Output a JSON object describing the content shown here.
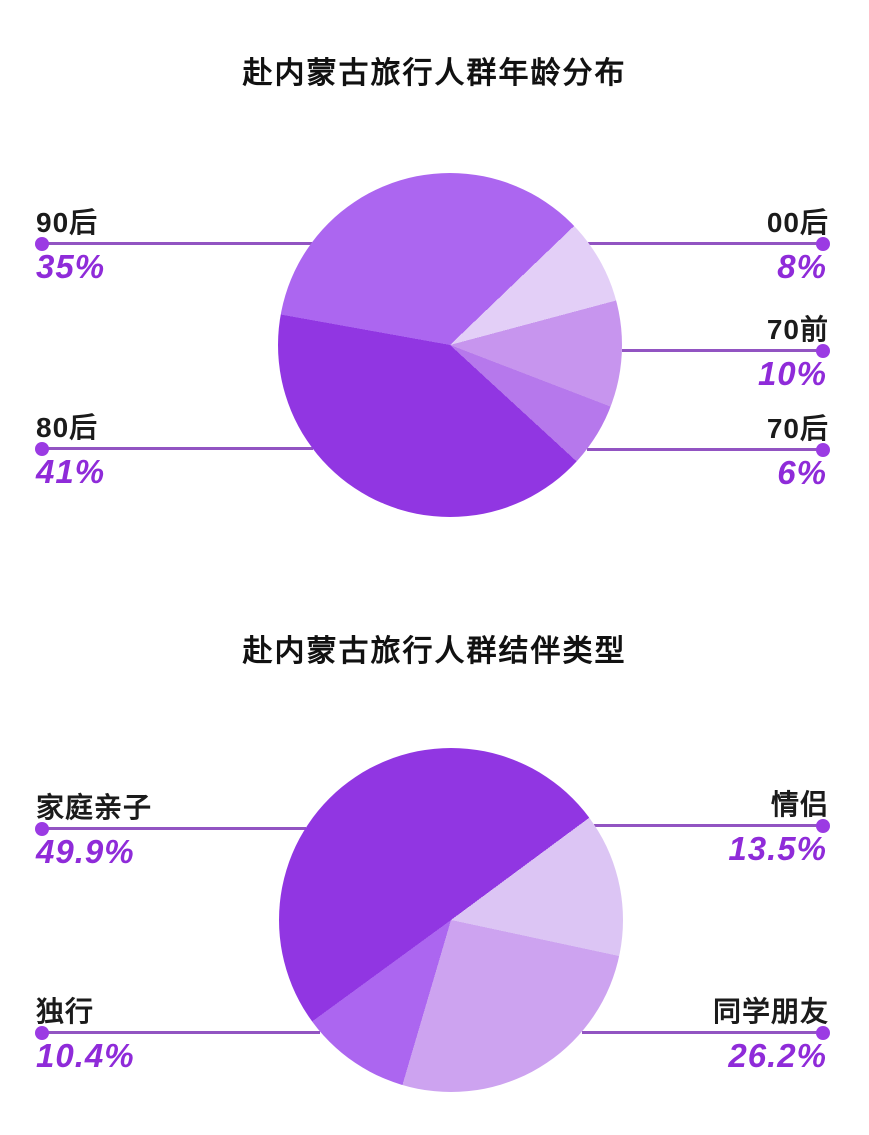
{
  "colors": {
    "background": "#ffffff",
    "title_text": "#111111",
    "label_text": "#1b1b1b",
    "percent_text": "#8F2BD9",
    "leader_line": "#9254C2",
    "leader_dot": "#9B3BE3"
  },
  "chart_data": [
    {
      "type": "pie",
      "title": "赴内蒙古旅行人群年龄分布",
      "unit": "%",
      "legend_position": "callout-labels-left-right",
      "grid": false,
      "start_angle_deg": 46.2,
      "clockwise_order": [
        "00后",
        "70前",
        "70后",
        "80后",
        "90后"
      ],
      "slices": [
        {
          "label": "90后",
          "value": 35,
          "display": "35%",
          "color": "#AC66F0",
          "side": "left",
          "row": "top"
        },
        {
          "label": "00后",
          "value": 8,
          "display": "8%",
          "color": "#E3CFF7",
          "side": "right",
          "row": "top"
        },
        {
          "label": "70前",
          "value": 10,
          "display": "10%",
          "color": "#C795EE",
          "side": "right",
          "row": "middle"
        },
        {
          "label": "70后",
          "value": 6,
          "display": "6%",
          "color": "#B678EC",
          "side": "right",
          "row": "bottom"
        },
        {
          "label": "80后",
          "value": 41,
          "display": "41%",
          "color": "#9136E2",
          "side": "left",
          "row": "bottom"
        }
      ]
    },
    {
      "type": "pie",
      "title": "赴内蒙古旅行人群结伴类型",
      "unit": "%",
      "legend_position": "callout-labels-left-right",
      "grid": false,
      "start_angle_deg": 53.5,
      "clockwise_order": [
        "情侣",
        "同学朋友",
        "独行",
        "家庭亲子"
      ],
      "slices": [
        {
          "label": "家庭亲子",
          "value": 49.9,
          "display": "49.9%",
          "color": "#9136E2",
          "side": "left",
          "row": "top"
        },
        {
          "label": "情侣",
          "value": 13.5,
          "display": "13.5%",
          "color": "#DCC5F4",
          "side": "right",
          "row": "top"
        },
        {
          "label": "独行",
          "value": 10.4,
          "display": "10.4%",
          "color": "#AC66F0",
          "side": "left",
          "row": "bottom"
        },
        {
          "label": "同学朋友",
          "value": 26.2,
          "display": "26.2%",
          "color": "#CDA3F0",
          "side": "right",
          "row": "bottom"
        }
      ]
    }
  ]
}
